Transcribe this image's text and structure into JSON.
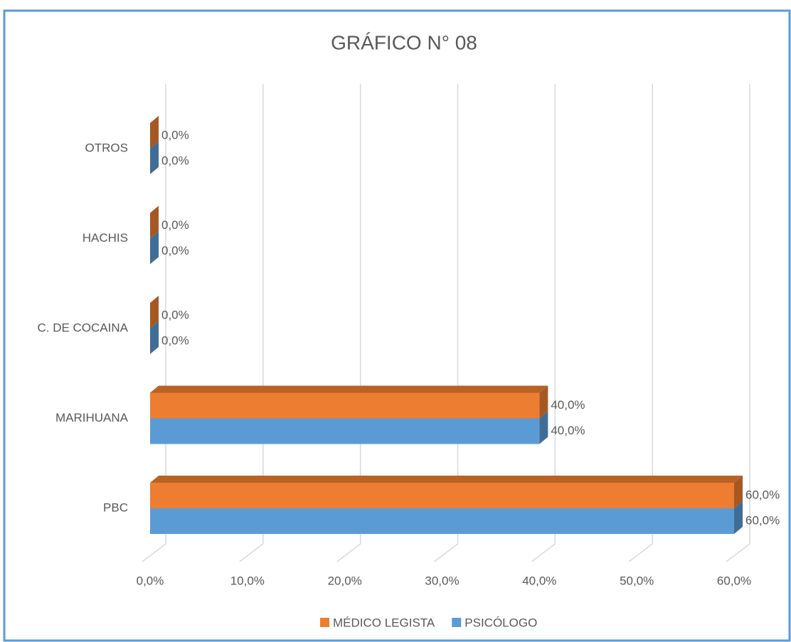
{
  "chart_data": {
    "type": "bar3d_horizontal",
    "title": "GRÁFICO N° 08",
    "categories": [
      "PBC",
      "MARIHUANA",
      "C. DE COCAINA",
      "HACHIS",
      "OTROS"
    ],
    "series": [
      {
        "name": "MÉDICO LEGISTA",
        "color": "#ED7D31",
        "values": [
          60,
          40,
          0,
          0,
          0
        ],
        "value_labels": [
          "60,0%",
          "40,0%",
          "0,0%",
          "0,0%",
          "0,0%"
        ]
      },
      {
        "name": "PSICÓLOGO",
        "color": "#5B9BD5",
        "values": [
          60,
          40,
          0,
          0,
          0
        ],
        "value_labels": [
          "60,0%",
          "40,0%",
          "0,0%",
          "0,0%",
          "0,0%"
        ]
      }
    ],
    "xlim": [
      0,
      60
    ],
    "xticks": [
      {
        "value": 0,
        "label": "0,0%"
      },
      {
        "value": 10,
        "label": "10,0%"
      },
      {
        "value": 20,
        "label": "20,0%"
      },
      {
        "value": 30,
        "label": "30,0%"
      },
      {
        "value": 40,
        "label": "40,0%"
      },
      {
        "value": 50,
        "label": "50,0%"
      },
      {
        "value": 60,
        "label": "60,0%"
      }
    ],
    "grid": true,
    "legend": "bottom"
  }
}
